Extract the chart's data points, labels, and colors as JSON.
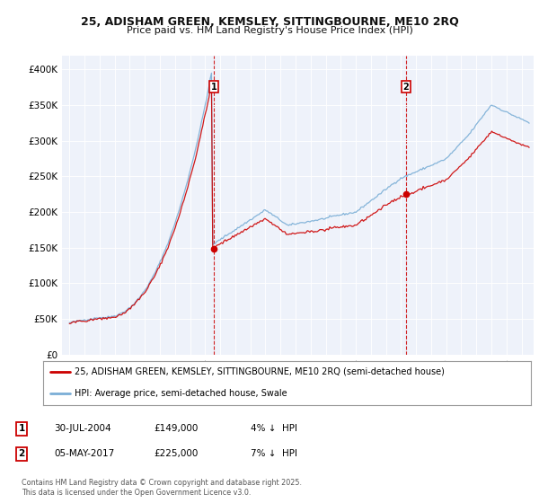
{
  "title_line1": "25, ADISHAM GREEN, KEMSLEY, SITTINGBOURNE, ME10 2RQ",
  "title_line2": "Price paid vs. HM Land Registry's House Price Index (HPI)",
  "legend_label1": "25, ADISHAM GREEN, KEMSLEY, SITTINGBOURNE, ME10 2RQ (semi-detached house)",
  "legend_label2": "HPI: Average price, semi-detached house, Swale",
  "footer": "Contains HM Land Registry data © Crown copyright and database right 2025.\nThis data is licensed under the Open Government Licence v3.0.",
  "annotation1_date": "30-JUL-2004",
  "annotation1_price": "£149,000",
  "annotation1_note": "4% ↓  HPI",
  "annotation2_date": "05-MAY-2017",
  "annotation2_price": "£225,000",
  "annotation2_note": "7% ↓  HPI",
  "purchase1_year": 2004.57,
  "purchase1_price": 149000,
  "purchase2_year": 2017.34,
  "purchase2_price": 225000,
  "line1_color": "#cc0000",
  "line2_color": "#7aaed6",
  "annotation_line_color": "#cc0000",
  "ylim": [
    0,
    420000
  ],
  "xlim_start": 1994.5,
  "xlim_end": 2025.8,
  "background_color": "#ffffff",
  "plot_bg_color": "#eef2fa"
}
